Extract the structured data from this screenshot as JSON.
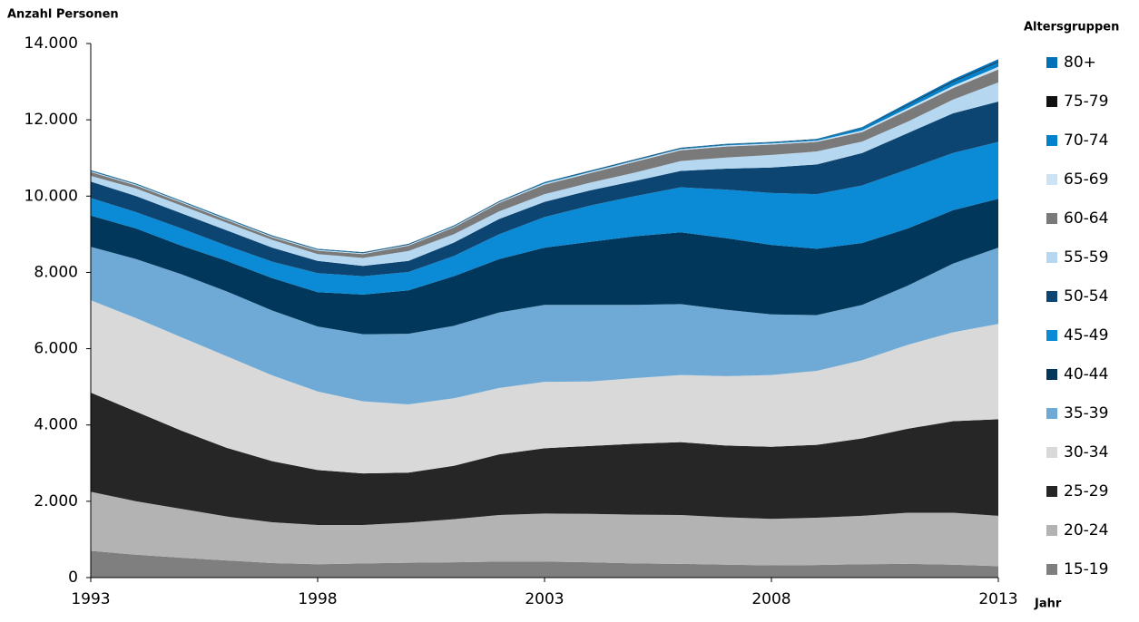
{
  "chart_data": {
    "type": "stacked-area",
    "y_label": "Anzahl Personen",
    "x_label": "Jahr",
    "legend_title": "Altersgruppen",
    "x": [
      1993,
      1994,
      1995,
      1996,
      1997,
      1998,
      1999,
      2000,
      2001,
      2002,
      2003,
      2004,
      2005,
      2006,
      2007,
      2008,
      2009,
      2010,
      2011,
      2012,
      2013
    ],
    "xlim": [
      1993,
      2013
    ],
    "xticks": [
      1993,
      1998,
      2003,
      2008,
      2013
    ],
    "ylim": [
      0,
      14000
    ],
    "yticks": [
      0,
      {
        "value": 2000,
        "label": "2.000"
      },
      {
        "value": 4000,
        "label": "4.000"
      },
      {
        "value": 6000,
        "label": "6.000"
      },
      {
        "value": 8000,
        "label": "8.000"
      },
      {
        "value": 10000,
        "label": "10.000"
      },
      {
        "value": 12000,
        "label": "12.000"
      },
      {
        "value": 14000,
        "label": "14.000"
      }
    ],
    "grid": false,
    "series": [
      {
        "name": "15-19",
        "color": "#7f7f7f",
        "values": [
          700,
          600,
          520,
          450,
          380,
          350,
          370,
          390,
          400,
          420,
          420,
          400,
          370,
          360,
          340,
          320,
          330,
          350,
          360,
          340,
          300
        ]
      },
      {
        "name": "20-24",
        "color": "#b3b3b3",
        "values": [
          1550,
          1400,
          1280,
          1150,
          1070,
          1030,
          1010,
          1050,
          1130,
          1220,
          1260,
          1270,
          1280,
          1280,
          1240,
          1220,
          1240,
          1270,
          1340,
          1360,
          1320
        ]
      },
      {
        "name": "25-29",
        "color": "#262626",
        "values": [
          2600,
          2350,
          2050,
          1800,
          1600,
          1440,
          1350,
          1310,
          1400,
          1590,
          1710,
          1780,
          1860,
          1910,
          1880,
          1890,
          1910,
          2030,
          2200,
          2400,
          2530
        ]
      },
      {
        "name": "30-34",
        "color": "#d9d9d9",
        "values": [
          2420,
          2450,
          2450,
          2400,
          2250,
          2060,
          1890,
          1790,
          1770,
          1740,
          1740,
          1690,
          1720,
          1760,
          1820,
          1880,
          1940,
          2050,
          2200,
          2330,
          2500
        ]
      },
      {
        "name": "35-39",
        "color": "#6eaad5",
        "values": [
          1400,
          1550,
          1650,
          1700,
          1700,
          1700,
          1760,
          1850,
          1900,
          1980,
          2020,
          2010,
          1920,
          1860,
          1740,
          1590,
          1460,
          1450,
          1550,
          1800,
          2000
        ]
      },
      {
        "name": "40-44",
        "color": "#00375a",
        "values": [
          820,
          800,
          750,
          800,
          850,
          900,
          1040,
          1140,
          1300,
          1400,
          1500,
          1650,
          1800,
          1880,
          1880,
          1820,
          1740,
          1620,
          1500,
          1400,
          1280
        ]
      },
      {
        "name": "45-49",
        "color": "#0b8ad5",
        "values": [
          460,
          430,
          450,
          400,
          430,
          500,
          480,
          480,
          530,
          650,
          800,
          950,
          1050,
          1180,
          1270,
          1360,
          1430,
          1510,
          1550,
          1500,
          1490
        ]
      },
      {
        "name": "50-54",
        "color": "#0d4572",
        "values": [
          430,
          420,
          400,
          400,
          370,
          320,
          270,
          290,
          350,
          400,
          400,
          400,
          400,
          430,
          550,
          670,
          780,
          850,
          950,
          1040,
          1060
        ]
      },
      {
        "name": "55-59",
        "color": "#b6d7f0",
        "values": [
          150,
          200,
          200,
          200,
          200,
          180,
          210,
          260,
          220,
          200,
          200,
          200,
          220,
          260,
          290,
          330,
          340,
          300,
          300,
          360,
          500
        ]
      },
      {
        "name": "60-64",
        "color": "#7a7a7a",
        "values": [
          100,
          80,
          80,
          70,
          70,
          90,
          100,
          140,
          180,
          220,
          250,
          250,
          280,
          280,
          290,
          270,
          250,
          250,
          300,
          300,
          340
        ]
      },
      {
        "name": "65-69",
        "color": "#cde3f4",
        "values": [
          20,
          20,
          20,
          20,
          20,
          20,
          20,
          20,
          20,
          20,
          30,
          30,
          30,
          30,
          30,
          30,
          30,
          40,
          50,
          60,
          70
        ]
      },
      {
        "name": "70-74",
        "color": "#0083cc",
        "values": [
          10,
          10,
          10,
          10,
          10,
          10,
          10,
          10,
          10,
          10,
          20,
          20,
          20,
          20,
          20,
          20,
          30,
          60,
          80,
          100,
          120
        ]
      },
      {
        "name": "75-79",
        "color": "#111111",
        "values": [
          10,
          10,
          10,
          10,
          10,
          10,
          10,
          10,
          10,
          10,
          10,
          10,
          10,
          10,
          10,
          10,
          10,
          10,
          20,
          20,
          20
        ]
      },
      {
        "name": "80+",
        "color": "#0070b8",
        "values": [
          10,
          10,
          10,
          10,
          10,
          10,
          10,
          10,
          10,
          10,
          10,
          10,
          10,
          10,
          10,
          10,
          10,
          20,
          40,
          50,
          60
        ]
      }
    ]
  }
}
